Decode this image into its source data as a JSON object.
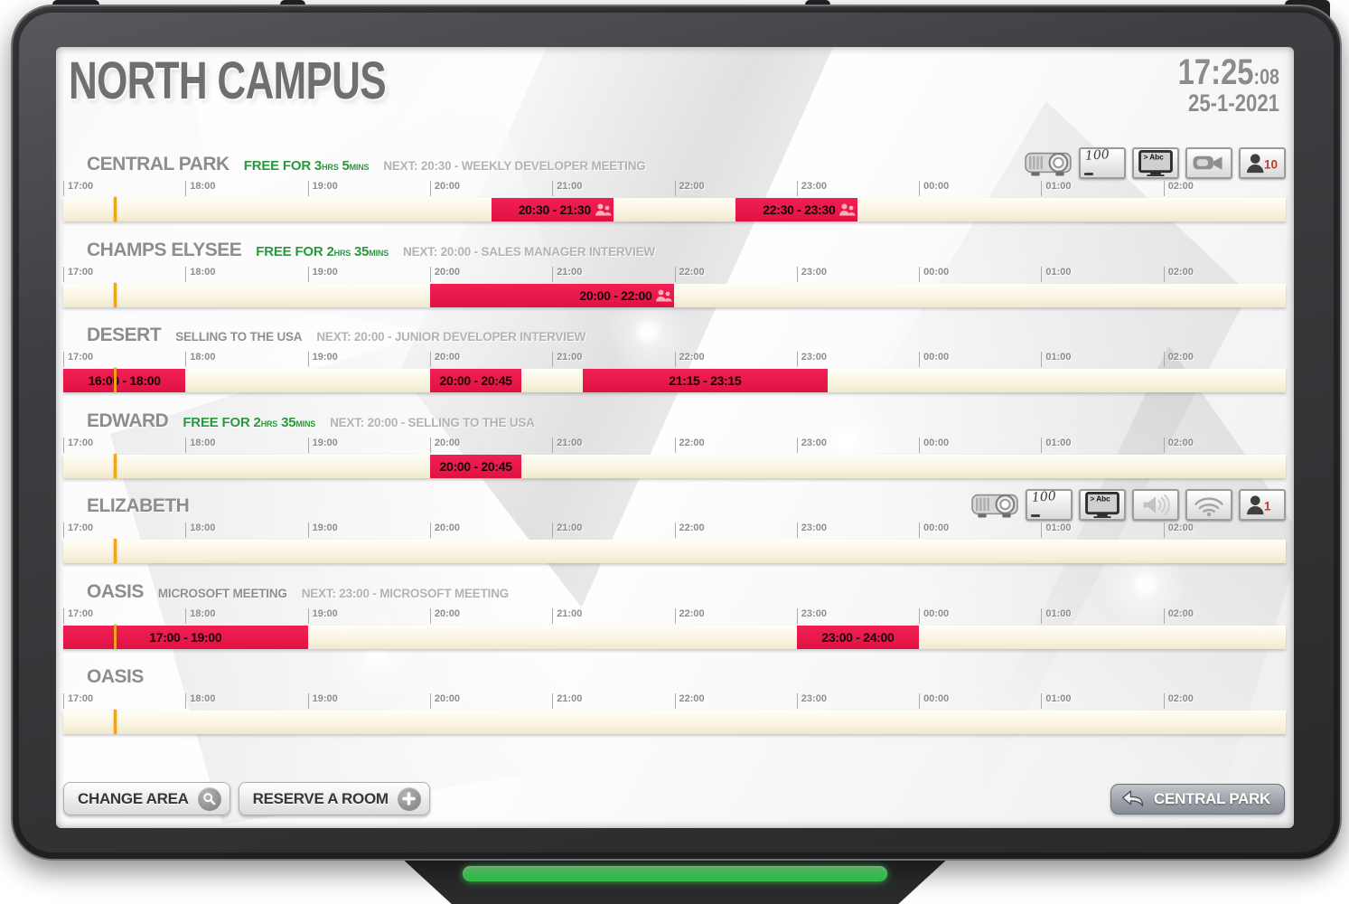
{
  "header": {
    "title": "NORTH CAMPUS",
    "time": "17:25",
    "seconds": ":08",
    "date": "25-1-2021"
  },
  "timeline": {
    "range_start": "17:00",
    "range_end": "03:00",
    "current_time": "17:25",
    "hour_labels": [
      "17:00",
      "18:00",
      "19:00",
      "20:00",
      "21:00",
      "22:00",
      "23:00",
      "00:00",
      "01:00",
      "02:00"
    ]
  },
  "colors": {
    "booking_red": "#e7194a",
    "free_green": "#27993c",
    "now_line_orange": "#f2a51c",
    "led_green": "#46e263"
  },
  "rooms": [
    {
      "name": "CENTRAL PARK",
      "free": {
        "prefix": "FREE FOR",
        "hours": "3",
        "hours_unit": "HRS",
        "minutes": "5",
        "minutes_unit": "MINS"
      },
      "next": "NEXT: 20:30 - WEEKLY DEVELOPER MEETING",
      "icons": [
        {
          "type": "projector"
        },
        {
          "type": "whiteboard",
          "value": "100"
        },
        {
          "type": "tv",
          "value": "> Abc"
        },
        {
          "type": "camera"
        },
        {
          "type": "capacity",
          "value": "10"
        }
      ],
      "bookings": [
        {
          "label": "20:30 - 21:30",
          "start": "20:30",
          "end": "21:30",
          "attendees_icon": true
        },
        {
          "label": "22:30 - 23:30",
          "start": "22:30",
          "end": "23:30",
          "attendees_icon": true
        }
      ]
    },
    {
      "name": "CHAMPS ELYSEE",
      "free": {
        "prefix": "FREE FOR",
        "hours": "2",
        "hours_unit": "HRS",
        "minutes": "35",
        "minutes_unit": "MINS"
      },
      "next": "NEXT: 20:00 - SALES MANAGER INTERVIEW",
      "icons": [],
      "bookings": [
        {
          "label": "20:00 - 22:00",
          "start": "20:00",
          "end": "22:00",
          "attendees_icon": true
        }
      ]
    },
    {
      "name": "DESERT",
      "current_meeting": "SELLING TO THE USA",
      "next": "NEXT: 20:00 - JUNIOR DEVELOPER INTERVIEW",
      "icons": [],
      "bookings": [
        {
          "label": "16:00 - 18:00",
          "start": "16:00",
          "end": "18:00"
        },
        {
          "label": "20:00 - 20:45",
          "start": "20:00",
          "end": "20:45"
        },
        {
          "label": "21:15 - 23:15",
          "start": "21:15",
          "end": "23:15"
        }
      ]
    },
    {
      "name": "EDWARD",
      "free": {
        "prefix": "FREE FOR",
        "hours": "2",
        "hours_unit": "HRS",
        "minutes": "35",
        "minutes_unit": "MINS"
      },
      "next": "NEXT: 20:00 - SELLING TO THE USA",
      "icons": [],
      "bookings": [
        {
          "label": "20:00 - 20:45",
          "start": "20:00",
          "end": "20:45"
        }
      ]
    },
    {
      "name": "ELIZABETH",
      "icons": [
        {
          "type": "projector"
        },
        {
          "type": "whiteboard",
          "value": "100"
        },
        {
          "type": "tv",
          "value": "> Abc"
        },
        {
          "type": "speaker"
        },
        {
          "type": "wifi"
        },
        {
          "type": "capacity",
          "value": "1"
        }
      ],
      "bookings": []
    },
    {
      "name": "OASIS",
      "current_meeting": "MICROSOFT MEETING",
      "next": "NEXT: 23:00 - MICROSOFT MEETING",
      "icons": [],
      "bookings": [
        {
          "label": "17:00 - 19:00",
          "start": "17:00",
          "end": "19:00"
        },
        {
          "label": "23:00 - 24:00",
          "start": "23:00",
          "end": "24:00"
        }
      ]
    },
    {
      "name": "OASIS",
      "icons": [],
      "bookings": []
    }
  ],
  "footer": {
    "change_area_label": "CHANGE AREA",
    "reserve_label": "RESERVE A ROOM",
    "back_room_label": "CENTRAL PARK"
  }
}
